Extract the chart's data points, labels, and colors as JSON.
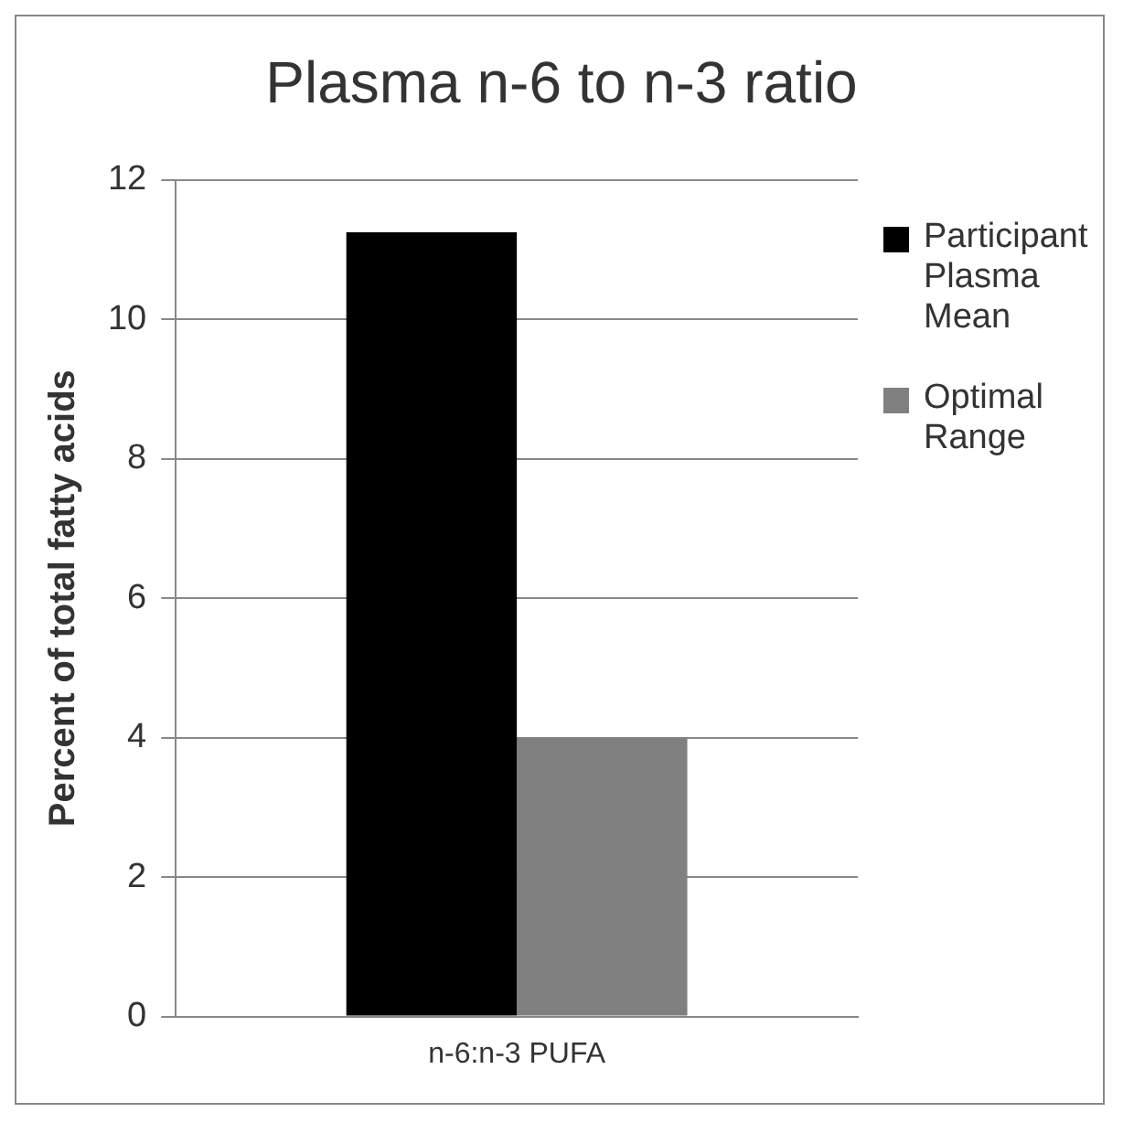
{
  "chart_data": {
    "type": "bar",
    "title": "Plasma n-6 to n-3 ratio",
    "ylabel": "Percent of total fatty acids",
    "categories": [
      "n-6:n-3 PUFA"
    ],
    "series": [
      {
        "name": "Participant Plasma Mean",
        "color": "#000000",
        "values": [
          11.25
        ]
      },
      {
        "name": "Optimal Range",
        "color": "#808080",
        "values": [
          4
        ]
      }
    ],
    "ylim": [
      0,
      12
    ],
    "yticks": [
      0,
      2,
      4,
      6,
      8,
      10,
      12
    ],
    "grid": "y",
    "legend": "right"
  }
}
